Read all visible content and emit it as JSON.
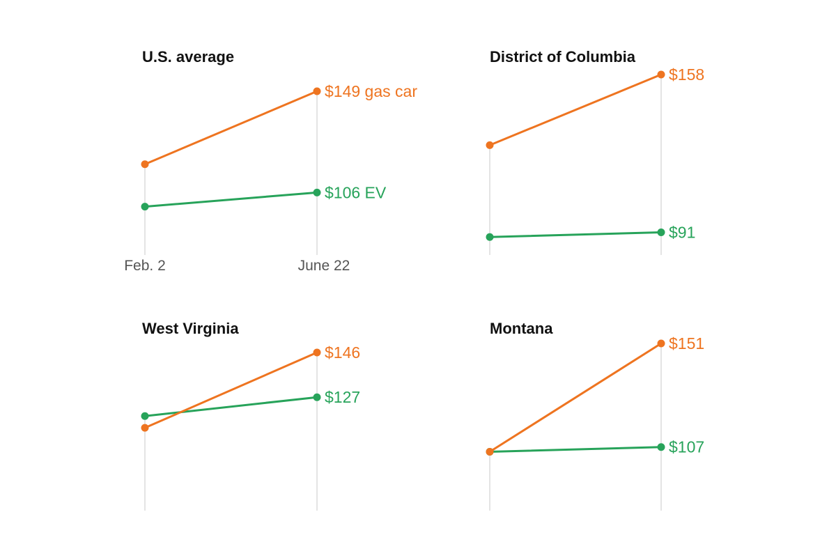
{
  "colors": {
    "gas": "#ee7420",
    "ev": "#27a35a",
    "guide": "#d6d6d6"
  },
  "x_ticks": [
    "Feb. 2",
    "June 22"
  ],
  "chart_data": [
    {
      "type": "line",
      "title": "U.S. average",
      "x": [
        "Feb. 2",
        "June 22"
      ],
      "series": [
        {
          "key": "gas",
          "values": [
            118,
            149
          ],
          "end_label": "$149 gas car"
        },
        {
          "key": "ev",
          "values": [
            100,
            106
          ],
          "end_label": "$106 EV"
        }
      ]
    },
    {
      "type": "line",
      "title": "District of Columbia",
      "x": [
        "Feb. 2",
        "June 22"
      ],
      "series": [
        {
          "key": "gas",
          "values": [
            128,
            158
          ],
          "end_label": "$158"
        },
        {
          "key": "ev",
          "values": [
            89,
            91
          ],
          "end_label": "$91"
        }
      ]
    },
    {
      "type": "line",
      "title": "West Virginia",
      "x": [
        "Feb. 2",
        "June 22"
      ],
      "series": [
        {
          "key": "gas",
          "values": [
            114,
            146
          ],
          "end_label": "$146"
        },
        {
          "key": "ev",
          "values": [
            119,
            127
          ],
          "end_label": "$127"
        }
      ]
    },
    {
      "type": "line",
      "title": "Montana",
      "x": [
        "Feb. 2",
        "June 22"
      ],
      "series": [
        {
          "key": "gas",
          "values": [
            105,
            151
          ],
          "end_label": "$151"
        },
        {
          "key": "ev",
          "values": [
            105,
            107
          ],
          "end_label": "$107"
        }
      ]
    }
  ]
}
